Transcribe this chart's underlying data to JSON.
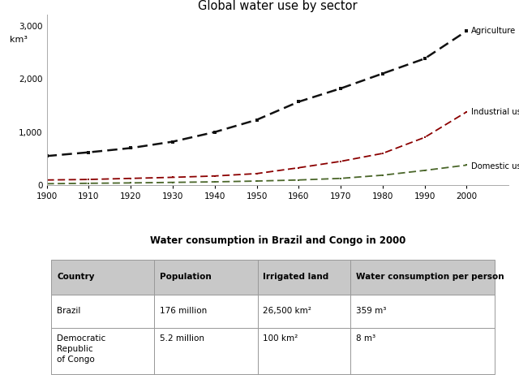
{
  "title_chart": "Global water use by sector",
  "title_table": "Water consumption in Brazil and Congo in 2000",
  "years": [
    1900,
    1910,
    1920,
    1930,
    1940,
    1950,
    1960,
    1970,
    1980,
    1990,
    2000
  ],
  "agriculture": [
    550,
    620,
    700,
    820,
    1000,
    1230,
    1570,
    1820,
    2100,
    2380,
    2900
  ],
  "industrial": [
    100,
    110,
    130,
    150,
    175,
    220,
    330,
    450,
    600,
    900,
    1380
  ],
  "domestic": [
    30,
    38,
    45,
    55,
    65,
    80,
    100,
    130,
    190,
    280,
    380
  ],
  "agri_color": "#111111",
  "indus_color": "#8B0000",
  "domestic_color": "#4a6629",
  "ylabel": "km³",
  "yticks": [
    0,
    1000,
    2000,
    3000
  ],
  "xlim": [
    1900,
    2000
  ],
  "ylim": [
    0,
    3200
  ],
  "label_agri": "Agriculture",
  "label_indus": "Industrial use",
  "label_dom": "Domestic use",
  "table_headers": [
    "Country",
    "Population",
    "Irrigated land",
    "Water consumption per person"
  ],
  "table_rows": [
    [
      "Brazil",
      "176 million",
      "26,500 km²",
      "359 m³"
    ],
    [
      "Democratic\nRepublic\nof Congo",
      "5.2 million",
      "100 km²",
      "8 m³"
    ]
  ],
  "header_bg": "#c8c8c8",
  "row_bg": "#ffffff",
  "bg_color": "#ffffff",
  "table_edge_color": "#999999"
}
